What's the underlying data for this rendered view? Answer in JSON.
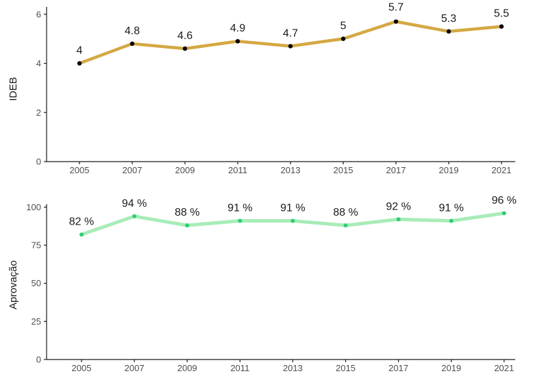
{
  "chart_data": [
    {
      "type": "line",
      "x": [
        "2005",
        "2007",
        "2009",
        "2011",
        "2013",
        "2015",
        "2017",
        "2019",
        "2021"
      ],
      "values": [
        4,
        4.8,
        4.6,
        4.9,
        4.7,
        5,
        5.7,
        5.3,
        5.5
      ],
      "data_labels": [
        "4",
        "4.8",
        "4.6",
        "4.9",
        "4.7",
        "5",
        "5.7",
        "5.3",
        "5.5"
      ],
      "ylabel": "IDEB",
      "xlabel": "",
      "ylim": [
        0,
        6.3
      ],
      "yticks": [
        "0",
        "2",
        "4",
        "6"
      ],
      "grid": false,
      "line_color": "#d4a843",
      "point_color": "#000000"
    },
    {
      "type": "line",
      "x": [
        "2005",
        "2007",
        "2009",
        "2011",
        "2013",
        "2015",
        "2017",
        "2019",
        "2021"
      ],
      "values": [
        82,
        94,
        88,
        91,
        91,
        88,
        92,
        91,
        96
      ],
      "data_labels": [
        "82 %",
        "94 %",
        "88 %",
        "91 %",
        "91 %",
        "88 %",
        "92 %",
        "91 %",
        "96 %"
      ],
      "ylabel": "Aprovação",
      "xlabel": "",
      "ylim": [
        0,
        102
      ],
      "yticks": [
        "0",
        "25",
        "50",
        "75",
        "100"
      ],
      "grid": false,
      "line_color": "#a8ecb8",
      "point_color": "#2ecf73"
    }
  ]
}
